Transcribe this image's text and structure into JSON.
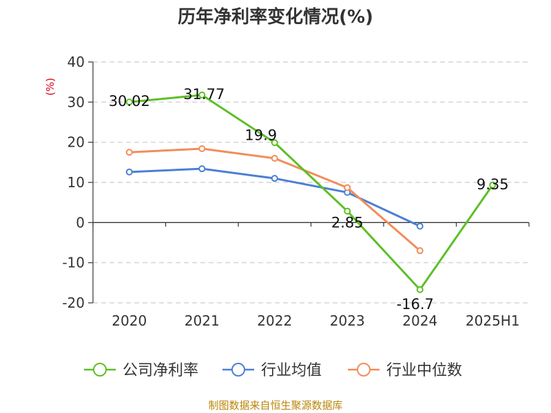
{
  "chart_data": {
    "type": "line",
    "title": "历年净利率变化情况(%)",
    "ylabel": "(%)",
    "categories": [
      "2020",
      "2021",
      "2022",
      "2023",
      "2024",
      "2025H1"
    ],
    "ylim": [
      -20,
      40
    ],
    "yticks": [
      -20,
      -10,
      0,
      10,
      20,
      30,
      40
    ],
    "grid": true,
    "legend_position": "bottom",
    "series": [
      {
        "name": "公司净利率",
        "color": "#5cbf26",
        "values": [
          30.02,
          31.77,
          19.9,
          2.85,
          -16.7,
          9.35
        ],
        "labels": [
          "30.02",
          "31.77",
          "19.9",
          "2.85",
          "-16.7",
          "9.35"
        ]
      },
      {
        "name": "行业均值",
        "color": "#4b7fd6",
        "values": [
          12.6,
          13.4,
          11.0,
          7.5,
          -0.9,
          null
        ]
      },
      {
        "name": "行业中位数",
        "color": "#f28c5a",
        "values": [
          17.5,
          18.4,
          16.0,
          8.7,
          -7.0,
          null
        ]
      }
    ]
  },
  "source": "制图数据来自恒生聚源数据库"
}
